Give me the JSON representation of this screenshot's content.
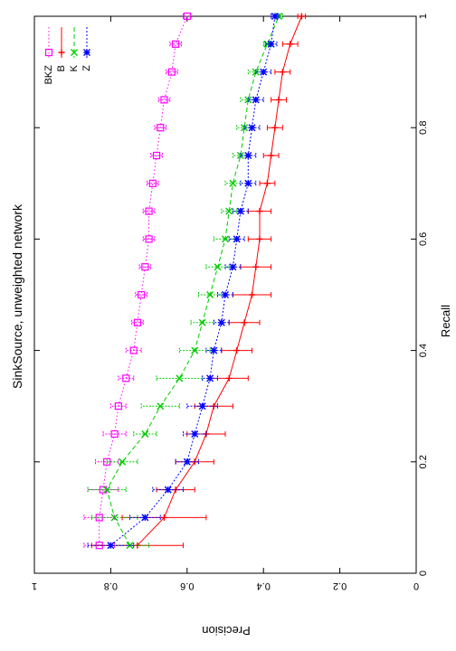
{
  "chart_data": {
    "type": "line",
    "title": "SinkSource, unweighted network",
    "xlabel": "Recall",
    "ylabel": "Precision",
    "xlim": [
      0,
      1
    ],
    "ylim": [
      0,
      1
    ],
    "xticks": [
      "0",
      "0.2",
      "0.4",
      "0.6",
      "0.8",
      "1"
    ],
    "yticks": [
      "0",
      "0.2",
      "0.4",
      "0.6",
      "0.8",
      "1"
    ],
    "grid": false,
    "legend_position": "top-left",
    "error_bars": true,
    "orientation_note": "rendered rotated 90 degrees",
    "x": [
      0.05,
      0.1,
      0.15,
      0.2,
      0.25,
      0.3,
      0.35,
      0.4,
      0.45,
      0.5,
      0.55,
      0.6,
      0.65,
      0.7,
      0.75,
      0.8,
      0.85,
      0.9,
      0.95,
      1.0
    ],
    "series": [
      {
        "name": "BKZ",
        "color": "#ff00ff",
        "marker": "square",
        "values": [
          0.83,
          0.83,
          0.82,
          0.81,
          0.79,
          0.78,
          0.76,
          0.74,
          0.73,
          0.72,
          0.71,
          0.7,
          0.7,
          0.69,
          0.68,
          0.67,
          0.66,
          0.64,
          0.63,
          0.6
        ],
        "errors": [
          0.04,
          0.04,
          0.04,
          0.03,
          0.03,
          0.02,
          0.02,
          0.02,
          0.015,
          0.015,
          0.015,
          0.015,
          0.015,
          0.015,
          0.015,
          0.015,
          0.015,
          0.015,
          0.015,
          0.01
        ]
      },
      {
        "name": "B",
        "color": "#ff0000",
        "marker": "plus",
        "values": [
          0.73,
          0.66,
          0.63,
          0.58,
          0.55,
          0.53,
          0.49,
          0.47,
          0.45,
          0.43,
          0.42,
          0.41,
          0.41,
          0.39,
          0.38,
          0.37,
          0.36,
          0.35,
          0.33,
          0.3
        ],
        "errors": [
          0.12,
          0.11,
          0.05,
          0.05,
          0.05,
          0.05,
          0.05,
          0.04,
          0.04,
          0.05,
          0.04,
          0.03,
          0.03,
          0.02,
          0.02,
          0.02,
          0.02,
          0.02,
          0.02,
          0.01
        ]
      },
      {
        "name": "K",
        "color": "#00cc00",
        "marker": "x",
        "values": [
          0.75,
          0.79,
          0.81,
          0.77,
          0.71,
          0.67,
          0.62,
          0.58,
          0.56,
          0.54,
          0.52,
          0.5,
          0.49,
          0.48,
          0.46,
          0.45,
          0.44,
          0.42,
          0.39,
          0.36
        ],
        "errors": [
          0.05,
          0.06,
          0.05,
          0.04,
          0.03,
          0.05,
          0.06,
          0.04,
          0.03,
          0.03,
          0.03,
          0.03,
          0.02,
          0.02,
          0.02,
          0.02,
          0.02,
          0.02,
          0.01,
          0.01
        ]
      },
      {
        "name": "Z",
        "color": "#0000ff",
        "marker": "asterisk",
        "values": [
          0.8,
          0.71,
          0.65,
          0.6,
          0.58,
          0.56,
          0.54,
          0.53,
          0.51,
          0.5,
          0.48,
          0.47,
          0.46,
          0.44,
          0.44,
          0.43,
          0.42,
          0.4,
          0.38,
          0.37
        ],
        "errors": [
          0.06,
          0.04,
          0.04,
          0.03,
          0.03,
          0.04,
          0.02,
          0.02,
          0.02,
          0.02,
          0.02,
          0.02,
          0.02,
          0.02,
          0.02,
          0.02,
          0.02,
          0.02,
          0.015,
          0.01
        ]
      }
    ]
  }
}
